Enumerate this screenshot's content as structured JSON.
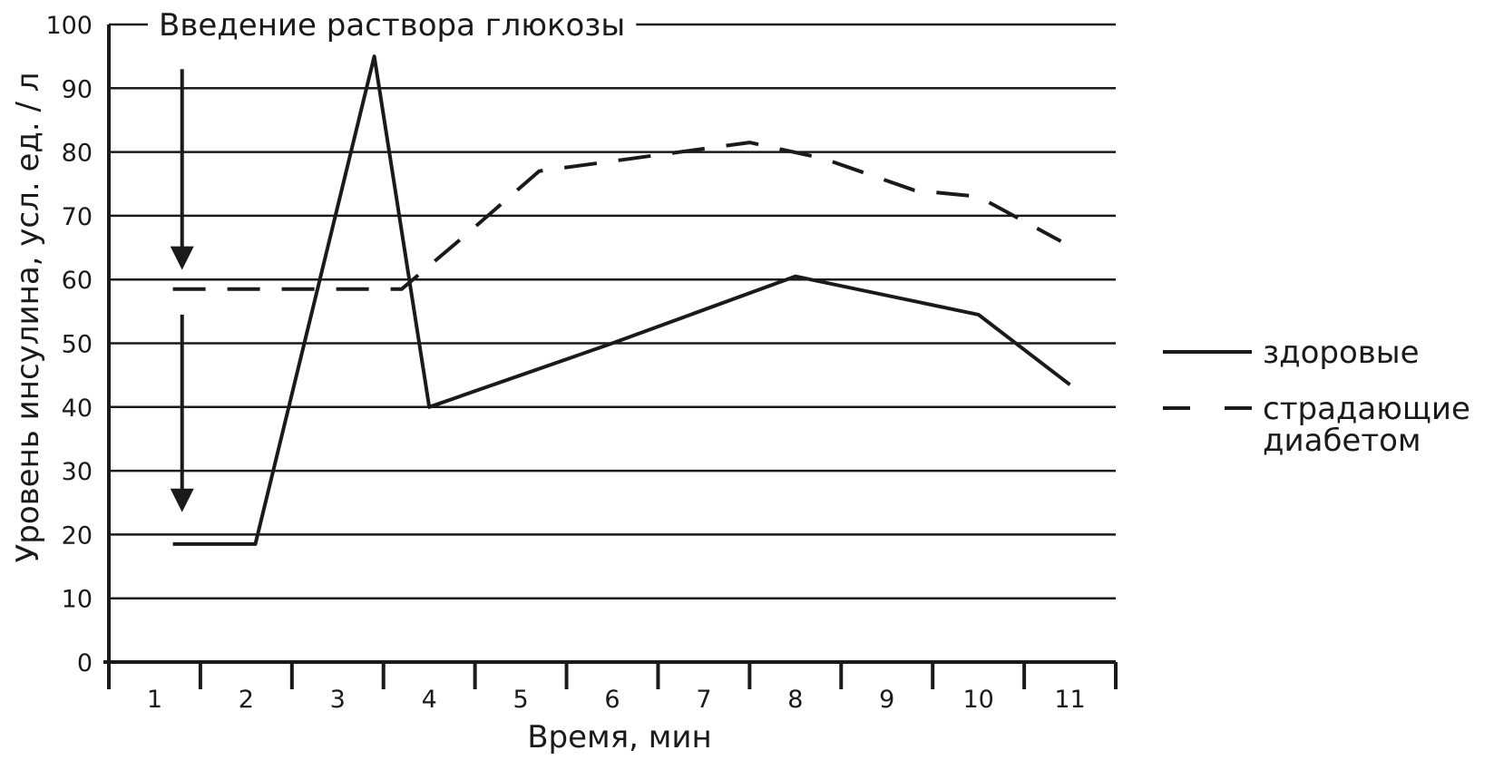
{
  "chart_data": {
    "type": "line",
    "title": "",
    "xlabel": "Время, мин",
    "ylabel": "Уровень инсулина, усл. ед. / л",
    "x_ticks": [
      "1",
      "2",
      "3",
      "4",
      "5",
      "6",
      "7",
      "8",
      "9",
      "10",
      "11"
    ],
    "y_ticks": [
      "0",
      "10",
      "20",
      "30",
      "40",
      "50",
      "60",
      "70",
      "80",
      "90",
      "100"
    ],
    "xlim": [
      0.5,
      11.5
    ],
    "ylim": [
      0,
      100
    ],
    "grid": true,
    "annotation": {
      "text": "Введение раствора глюкозы",
      "x": 1.3
    },
    "series": [
      {
        "name": "здоровые",
        "style": "solid",
        "points": [
          [
            1.2,
            18.5
          ],
          [
            2.1,
            18.5
          ],
          [
            3.4,
            95
          ],
          [
            4.0,
            40
          ],
          [
            6.0,
            50
          ],
          [
            8.0,
            60.5
          ],
          [
            10.0,
            54.5
          ],
          [
            11.0,
            43.5
          ]
        ]
      },
      {
        "name": "страдающие диабетом",
        "style": "dashed",
        "points": [
          [
            1.2,
            58.5
          ],
          [
            3.7,
            58.5
          ],
          [
            4.4,
            67
          ],
          [
            5.2,
            77
          ],
          [
            7.5,
            81.5
          ],
          [
            8.3,
            79
          ],
          [
            9.3,
            74
          ],
          [
            10.0,
            73
          ],
          [
            10.9,
            66
          ]
        ]
      }
    ],
    "legend": {
      "placement": "right",
      "entries": [
        {
          "style": "solid",
          "label_lines": [
            "здоровые"
          ]
        },
        {
          "style": "dashed",
          "label_lines": [
            "страдающие",
            "диабетом"
          ]
        }
      ]
    }
  }
}
